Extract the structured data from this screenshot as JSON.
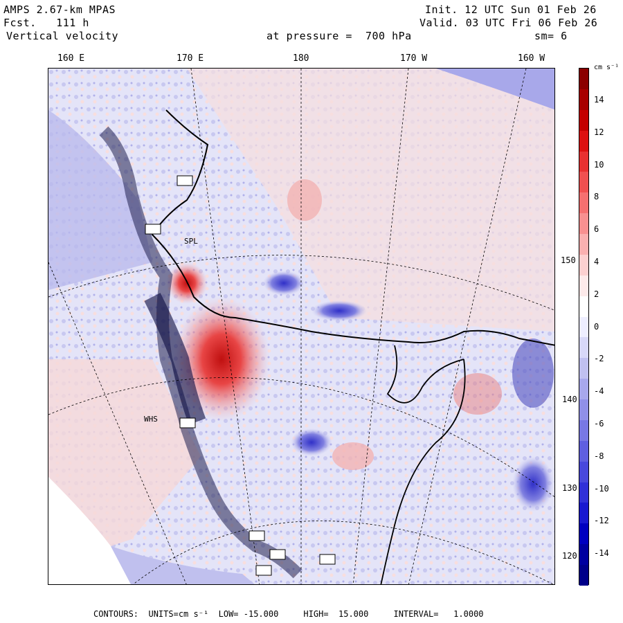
{
  "header": {
    "model": "AMPS 2.67-km MPAS",
    "fcst_label": "Fcst.",
    "fcst_value": "111 h",
    "field": "Vertical velocity",
    "init": "Init. 12 UTC Sun 01 Feb 26",
    "valid": "Valid. 03 UTC Fri 06 Feb 26",
    "level": "at pressure =  700 hPa",
    "smoothing": "sm= 6"
  },
  "map": {
    "lon_labels": [
      "160 E",
      "170 E",
      "180",
      "170 W",
      "160 W"
    ],
    "lat_labels": [
      "150 W",
      "140 W",
      "130 W",
      "120 W"
    ],
    "stations": [
      "SPL",
      "WHS"
    ]
  },
  "colorbar": {
    "unit": "cm s⁻¹",
    "ticks": [
      "14",
      "12",
      "10",
      "8",
      "6",
      "4",
      "2",
      "0",
      "-2",
      "-4",
      "-6",
      "-8",
      "-10",
      "-12",
      "-14"
    ],
    "colors": [
      "#8b0000",
      "#a80000",
      "#c40000",
      "#dd1010",
      "#e83030",
      "#f05050",
      "#f57070",
      "#f89090",
      "#fab0b0",
      "#fcd0d0",
      "#fdeaea",
      "#ffffff",
      "#eeeeff",
      "#d8d8f8",
      "#c0c0f0",
      "#a8a8ec",
      "#9090e8",
      "#7878e4",
      "#5f5fe0",
      "#4848dc",
      "#3030d8",
      "#1818d0",
      "#0000c0",
      "#0000a0",
      "#00008a"
    ]
  },
  "footer": {
    "contours": "CONTOURS:  UNITS=cm s⁻¹  LOW= -15.000     HIGH=  15.000     INTERVAL=   1.0000"
  }
}
